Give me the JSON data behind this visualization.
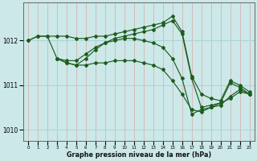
{
  "xlabel": "Graphe pression niveau de la mer (hPa)",
  "background_color": "#cce8e8",
  "grid_color_h": "#aad4d4",
  "grid_color_v": "#e08080",
  "line_color": "#1e5c1e",
  "xlim": [
    -0.5,
    23.5
  ],
  "ylim": [
    1009.75,
    1012.85
  ],
  "yticks": [
    1010,
    1011,
    1012
  ],
  "xticks": [
    0,
    1,
    2,
    3,
    4,
    5,
    6,
    7,
    8,
    9,
    10,
    11,
    12,
    13,
    14,
    15,
    16,
    17,
    18,
    19,
    20,
    21,
    22,
    23
  ],
  "series": [
    {
      "x": [
        0,
        1,
        2,
        3,
        4,
        5,
        6,
        7,
        8,
        9,
        10,
        11,
        12,
        13,
        14,
        15,
        16,
        17,
        18,
        19,
        20,
        21,
        22,
        23
      ],
      "y": [
        1012.0,
        1012.1,
        1012.1,
        1012.1,
        1012.1,
        1012.05,
        1012.05,
        1012.1,
        1012.1,
        1012.15,
        1012.2,
        1012.25,
        1012.3,
        1012.35,
        1012.4,
        1012.55,
        1012.2,
        1011.2,
        1010.8,
        1010.7,
        1010.65,
        1011.1,
        1011.0,
        1010.85
      ]
    },
    {
      "x": [
        0,
        1,
        2,
        3,
        4,
        5,
        6,
        7,
        8,
        9,
        10,
        11,
        12,
        13,
        14,
        15,
        16,
        17,
        18,
        19,
        20,
        21,
        22,
        23
      ],
      "y": [
        1012.0,
        1012.1,
        1012.1,
        1011.6,
        1011.55,
        1011.55,
        1011.7,
        1011.85,
        1011.95,
        1012.05,
        1012.1,
        1012.15,
        1012.2,
        1012.25,
        1012.35,
        1012.45,
        1012.15,
        1011.15,
        1010.5,
        1010.55,
        1010.6,
        1011.05,
        1010.95,
        1010.8
      ]
    },
    {
      "x": [
        3,
        4,
        5,
        6,
        7,
        8,
        9,
        10,
        11,
        12,
        13,
        14,
        15,
        16,
        17,
        18,
        19,
        20,
        21,
        22,
        23
      ],
      "y": [
        1011.6,
        1011.5,
        1011.45,
        1011.45,
        1011.5,
        1011.5,
        1011.55,
        1011.55,
        1011.55,
        1011.5,
        1011.45,
        1011.35,
        1011.1,
        1010.8,
        1010.45,
        1010.4,
        1010.5,
        1010.55,
        1010.75,
        1010.9,
        1010.8
      ]
    },
    {
      "x": [
        3,
        4,
        5,
        6,
        7,
        8,
        9,
        10,
        11,
        12,
        13,
        14,
        15,
        16,
        17,
        18,
        19,
        20,
        21,
        22,
        23
      ],
      "y": [
        1011.6,
        1011.5,
        1011.45,
        1011.6,
        1011.8,
        1011.95,
        1012.0,
        1012.05,
        1012.05,
        1012.0,
        1011.95,
        1011.85,
        1011.6,
        1011.15,
        1010.35,
        1010.45,
        1010.5,
        1010.6,
        1010.7,
        1010.85,
        1010.8
      ]
    }
  ]
}
